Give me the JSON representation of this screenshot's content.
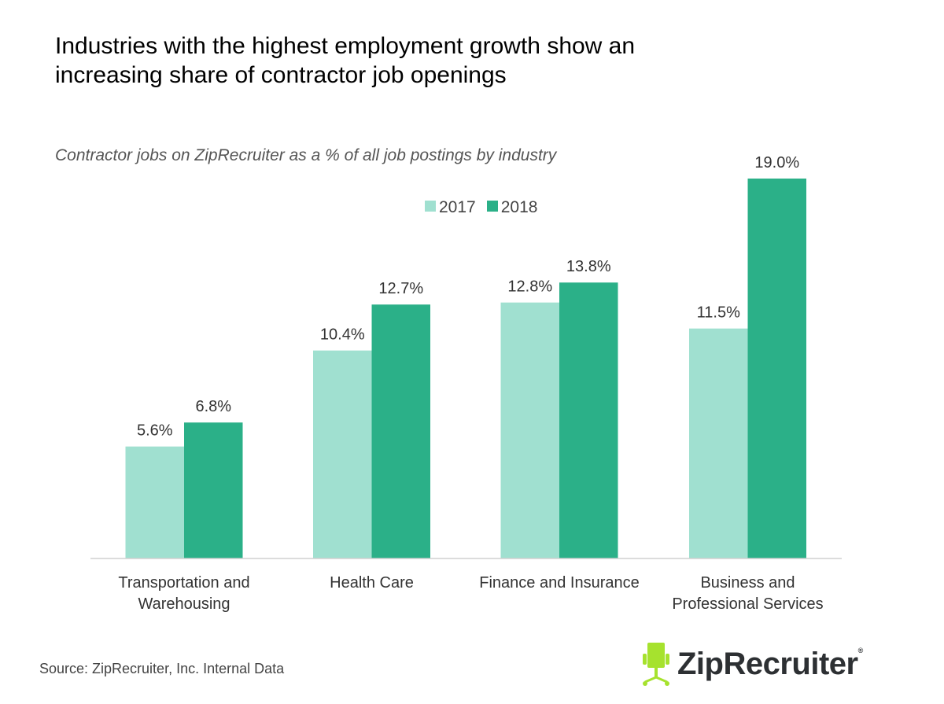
{
  "title": "Industries with the highest employment growth show an increasing share of contractor job openings",
  "subtitle": "Contractor jobs on ZipRecruiter as a % of all job postings by industry",
  "source": "Source: ZipRecruiter, Inc. Internal Data",
  "logo": {
    "text": "ZipRecruiter",
    "mark": "®",
    "icon": "chair-icon",
    "icon_color": "#a6e22e"
  },
  "chart_data": {
    "type": "bar",
    "categories": [
      [
        "Transportation and",
        "Warehousing"
      ],
      [
        "Health Care"
      ],
      [
        "Finance and Insurance"
      ],
      [
        "Business and",
        "Professional Services"
      ]
    ],
    "series": [
      {
        "name": "2017",
        "color": "#a0e0d0",
        "values": [
          5.6,
          10.4,
          12.8,
          11.5
        ],
        "labels": [
          "5.6%",
          "10.4%",
          "12.8%",
          "11.5%"
        ]
      },
      {
        "name": "2018",
        "color": "#2bb088",
        "values": [
          6.8,
          12.7,
          13.8,
          19.0
        ],
        "labels": [
          "6.8%",
          "12.7%",
          "13.8%",
          "19.0%"
        ]
      }
    ],
    "ylim": [
      0,
      20
    ],
    "grid": false,
    "legend_position": "top-center",
    "data_labels": true
  }
}
